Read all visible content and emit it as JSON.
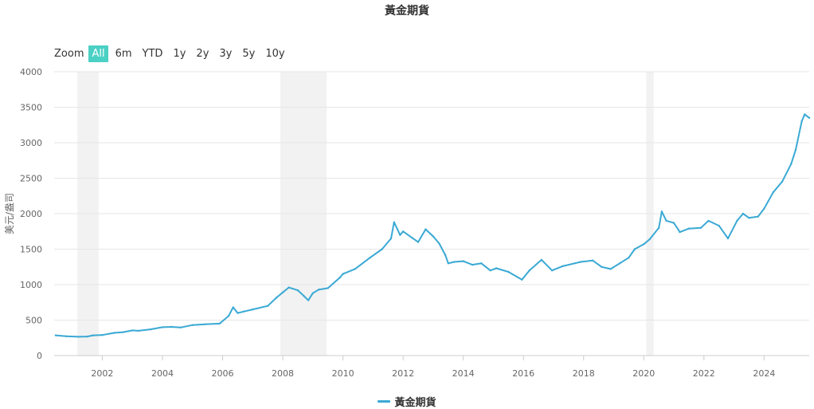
{
  "title": "黃金期貨",
  "zoom": {
    "label": "Zoom",
    "buttons": [
      "All",
      "6m",
      "YTD",
      "1y",
      "2y",
      "3y",
      "5y",
      "10y"
    ],
    "active": "All"
  },
  "legend": {
    "label": "黃金期貨"
  },
  "colors": {
    "series": "#3aa9d4",
    "band": "#f2f2f2",
    "grid": "#e6e6e6",
    "active_button": "#4bd0c4"
  },
  "chart_data": {
    "type": "line",
    "title": "黃金期貨",
    "ylabel": "美元/盎司",
    "xlabel": "",
    "x_range": [
      2000.4,
      2025.5
    ],
    "ylim": [
      0,
      4000
    ],
    "y_ticks": [
      0,
      500,
      1000,
      1500,
      2000,
      2500,
      3000,
      3500,
      4000
    ],
    "x_ticks": [
      2002,
      2004,
      2006,
      2008,
      2010,
      2012,
      2014,
      2016,
      2018,
      2020,
      2022,
      2024
    ],
    "grid": true,
    "legend_position": "bottom-center",
    "shaded_periods": [
      [
        2001.17,
        2001.88
      ],
      [
        2007.92,
        2009.46
      ],
      [
        2020.08,
        2020.33
      ]
    ],
    "series": [
      {
        "name": "黃金期貨",
        "x": [
          2000.45,
          2000.8,
          2001.2,
          2001.5,
          2001.7,
          2002.0,
          2002.4,
          2002.7,
          2003.0,
          2003.2,
          2003.6,
          2004.0,
          2004.3,
          2004.6,
          2005.0,
          2005.4,
          2005.9,
          2006.2,
          2006.35,
          2006.5,
          2006.7,
          2007.0,
          2007.5,
          2007.8,
          2008.0,
          2008.2,
          2008.5,
          2008.7,
          2008.85,
          2009.0,
          2009.2,
          2009.5,
          2009.9,
          2010.0,
          2010.4,
          2010.9,
          2011.3,
          2011.6,
          2011.7,
          2011.9,
          2012.0,
          2012.3,
          2012.5,
          2012.75,
          2013.0,
          2013.2,
          2013.4,
          2013.5,
          2013.7,
          2014.0,
          2014.3,
          2014.6,
          2014.9,
          2015.1,
          2015.5,
          2015.95,
          2016.2,
          2016.6,
          2016.95,
          2017.3,
          2017.7,
          2017.9,
          2018.3,
          2018.6,
          2018.9,
          2019.2,
          2019.5,
          2019.7,
          2020.0,
          2020.2,
          2020.5,
          2020.6,
          2020.75,
          2021.0,
          2021.2,
          2021.5,
          2021.9,
          2022.15,
          2022.5,
          2022.8,
          2023.1,
          2023.3,
          2023.5,
          2023.8,
          2024.0,
          2024.3,
          2024.6,
          2024.9,
          2025.05,
          2025.25,
          2025.35,
          2025.5
        ],
        "y": [
          285,
          272,
          265,
          268,
          285,
          290,
          320,
          330,
          355,
          350,
          370,
          400,
          405,
          395,
          430,
          440,
          450,
          560,
          680,
          600,
          620,
          650,
          700,
          820,
          890,
          960,
          920,
          840,
          780,
          880,
          930,
          950,
          1100,
          1150,
          1220,
          1380,
          1500,
          1650,
          1880,
          1700,
          1750,
          1660,
          1600,
          1780,
          1680,
          1580,
          1420,
          1300,
          1320,
          1330,
          1280,
          1300,
          1200,
          1230,
          1180,
          1070,
          1200,
          1350,
          1200,
          1260,
          1300,
          1320,
          1340,
          1250,
          1220,
          1300,
          1380,
          1500,
          1570,
          1640,
          1800,
          2030,
          1900,
          1870,
          1740,
          1790,
          1800,
          1900,
          1830,
          1650,
          1900,
          2000,
          1940,
          1960,
          2070,
          2300,
          2450,
          2700,
          2900,
          3300,
          3400,
          3350
        ]
      }
    ]
  }
}
